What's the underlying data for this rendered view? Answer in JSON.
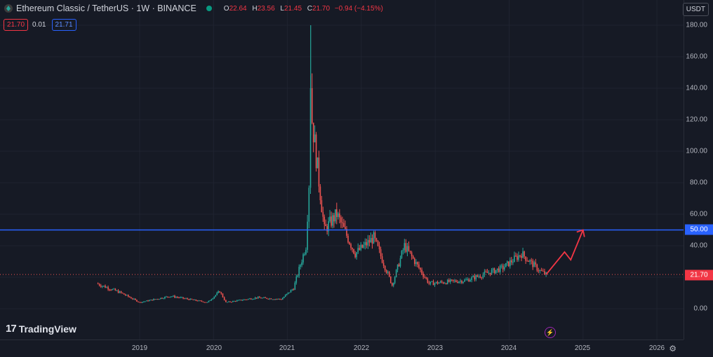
{
  "header": {
    "symbol": "Ethereum Classic / TetherUS · 1W · BINANCE",
    "ohlc": {
      "o_label": "O",
      "o": "22.64",
      "h_label": "H",
      "h": "23.56",
      "l_label": "L",
      "l": "21.45",
      "c_label": "C",
      "c": "21.70",
      "change": "−0.94 (−4.15%)"
    }
  },
  "trade": {
    "sell": "21.70",
    "spread": "0.01",
    "buy": "21.71"
  },
  "currency_button": "USDT",
  "branding": {
    "logo_mark": "17",
    "logo_text": "TradingView"
  },
  "price_axis": {
    "labels": [
      "180.00",
      "160.00",
      "140.00",
      "120.00",
      "100.00",
      "80.00",
      "60.00",
      "40.00",
      "0.00"
    ],
    "horizontal_line_value": "50.00",
    "last_price": "21.70"
  },
  "time_axis": {
    "labels": [
      "2019",
      "2020",
      "2021",
      "2022",
      "2023",
      "2024",
      "2025",
      "2026"
    ]
  },
  "colors": {
    "up": "#26a69a",
    "down": "#ef5350",
    "hline": "#2962ff",
    "arrow": "#f23645",
    "background": "#161a25"
  },
  "icons": {
    "lightning": "lightning-icon",
    "settings": "gear-icon"
  },
  "chart_data": {
    "type": "candlestick",
    "price_range": [
      0,
      180
    ],
    "horizontal_line": 50,
    "last_close": 21.7,
    "series": [
      {
        "x": "2018-06",
        "close": 16
      },
      {
        "x": "2018-10",
        "close": 10
      },
      {
        "x": "2019-01",
        "close": 4
      },
      {
        "x": "2019-06",
        "close": 8
      },
      {
        "x": "2019-12",
        "close": 4
      },
      {
        "x": "2020-02",
        "close": 11
      },
      {
        "x": "2020-03",
        "close": 4
      },
      {
        "x": "2020-08",
        "close": 7
      },
      {
        "x": "2020-12",
        "close": 6
      },
      {
        "x": "2021-02",
        "close": 13
      },
      {
        "x": "2021-04",
        "close": 40
      },
      {
        "x": "2021-05",
        "close": 120
      },
      {
        "x": "2021-07",
        "close": 50
      },
      {
        "x": "2021-09",
        "close": 60
      },
      {
        "x": "2021-12",
        "close": 35
      },
      {
        "x": "2022-03",
        "close": 45
      },
      {
        "x": "2022-06",
        "close": 15
      },
      {
        "x": "2022-08",
        "close": 40
      },
      {
        "x": "2022-12",
        "close": 16
      },
      {
        "x": "2023-06",
        "close": 18
      },
      {
        "x": "2023-12",
        "close": 26
      },
      {
        "x": "2024-03",
        "close": 35
      },
      {
        "x": "2024-06",
        "close": 24
      },
      {
        "x": "2024-07",
        "close": 21.7
      }
    ],
    "projection": [
      {
        "x": "2024-07",
        "y": 21.7
      },
      {
        "x": "2024-10",
        "y": 36
      },
      {
        "x": "2024-11",
        "y": 31
      },
      {
        "x": "2025-01",
        "y": 50
      }
    ]
  }
}
